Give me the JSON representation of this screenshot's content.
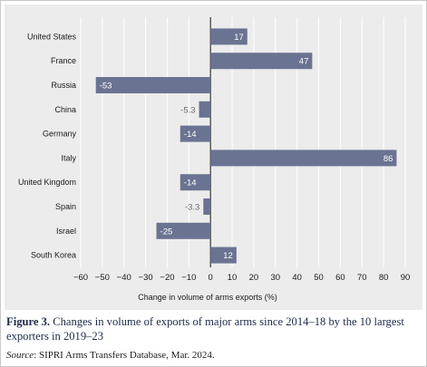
{
  "chart_data": {
    "type": "bar",
    "orientation": "horizontal",
    "categories": [
      "United States",
      "France",
      "Russia",
      "China",
      "Germany",
      "Italy",
      "United Kingdom",
      "Spain",
      "Israel",
      "South Korea"
    ],
    "values": [
      17,
      47,
      -53,
      -5.3,
      -14,
      86,
      -14,
      -3.3,
      -25,
      12
    ],
    "value_labels": [
      "17",
      "47",
      "-53",
      "-5.3",
      "-14",
      "86",
      "-14",
      "-3.3",
      "-25",
      "12"
    ],
    "xlabel": "Change in volume of arms exports (%)",
    "ylabel": "",
    "xlim": [
      -60,
      90
    ],
    "xticks": [
      -60,
      -50,
      -40,
      -30,
      -20,
      -10,
      0,
      10,
      20,
      30,
      40,
      50,
      60,
      70,
      80,
      90
    ],
    "xtick_labels": [
      "−60",
      "−50",
      "−40",
      "−30",
      "−20",
      "−10",
      "0",
      "10",
      "20",
      "30",
      "40",
      "50",
      "60",
      "70",
      "80",
      "90"
    ],
    "grid": "vertical",
    "bar_color": "#6a7391",
    "background_color": "#ececed"
  },
  "caption": {
    "label": "Figure 3.",
    "text": " Changes in volume of exports of major arms since 2014–18 by the 10 largest exporters in 2019–23"
  },
  "source": {
    "label": "Source",
    "text": ": SIPRI Arms Transfers Database, Mar. 2024."
  }
}
